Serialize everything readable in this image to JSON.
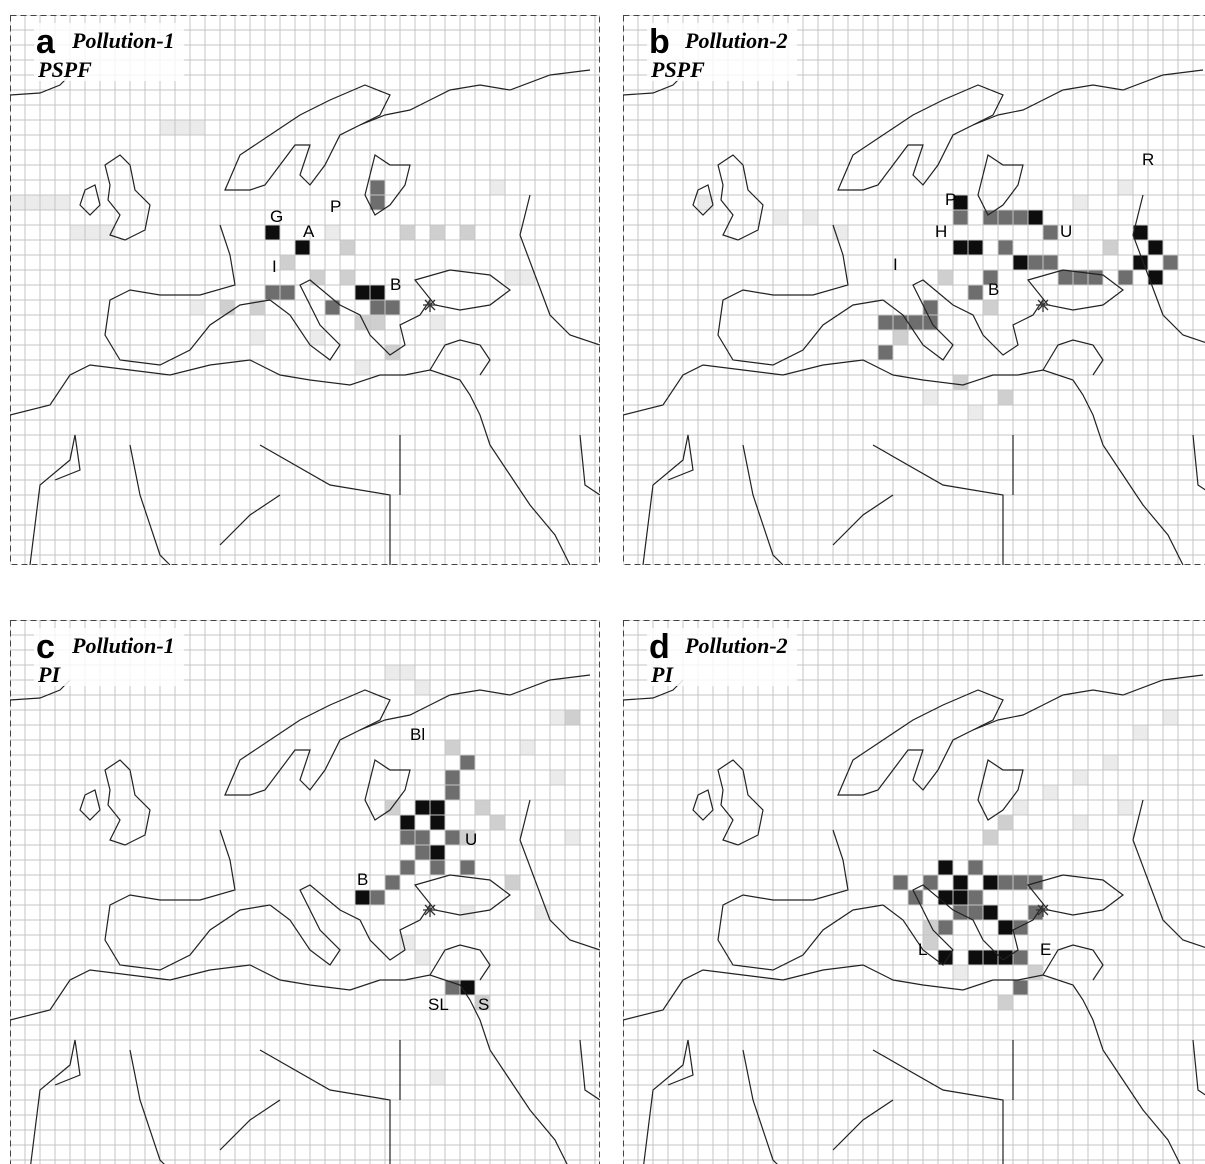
{
  "panels": [
    {
      "letter": "a",
      "title": "Pollution-1",
      "method": "PSPF",
      "labels": [
        "G",
        "P",
        "A",
        "I",
        "B"
      ],
      "cells": [
        [
          17,
          14,
          4
        ],
        [
          19,
          15,
          4
        ],
        [
          24,
          12,
          3
        ],
        [
          24,
          11,
          3
        ],
        [
          17,
          18,
          3
        ],
        [
          18,
          18,
          3
        ],
        [
          23,
          18,
          4
        ],
        [
          24,
          18,
          4
        ],
        [
          25,
          19,
          3
        ],
        [
          24,
          19,
          3
        ],
        [
          21,
          19,
          3
        ],
        [
          23,
          20,
          2
        ],
        [
          24,
          20,
          2
        ],
        [
          22,
          17,
          2
        ],
        [
          20,
          17,
          2
        ],
        [
          16,
          19,
          2
        ],
        [
          14,
          19,
          2
        ],
        [
          12,
          19,
          1
        ],
        [
          0,
          12,
          1
        ],
        [
          1,
          12,
          1
        ],
        [
          2,
          12,
          1
        ],
        [
          3,
          12,
          1
        ],
        [
          4,
          14,
          1
        ],
        [
          5,
          14,
          1
        ],
        [
          6,
          14,
          1
        ],
        [
          10,
          7,
          1
        ],
        [
          11,
          7,
          1
        ],
        [
          12,
          7,
          1
        ],
        [
          26,
          14,
          2
        ],
        [
          28,
          14,
          2
        ],
        [
          30,
          14,
          2
        ],
        [
          33,
          17,
          1
        ],
        [
          34,
          17,
          1
        ],
        [
          32,
          11,
          1
        ],
        [
          25,
          22,
          2
        ],
        [
          23,
          23,
          1
        ],
        [
          20,
          21,
          1
        ],
        [
          28,
          20,
          1
        ],
        [
          16,
          21,
          1
        ],
        [
          22,
          15,
          2
        ],
        [
          18,
          16,
          2
        ],
        [
          21,
          14,
          1
        ]
      ]
    },
    {
      "letter": "b",
      "title": "Pollution-2",
      "method": "PSPF",
      "labels": [
        "P",
        "H",
        "I",
        "B",
        "U",
        "R"
      ],
      "cells": [
        [
          22,
          15,
          4
        ],
        [
          23,
          15,
          4
        ],
        [
          22,
          12,
          4
        ],
        [
          22,
          13,
          3
        ],
        [
          24,
          13,
          3
        ],
        [
          25,
          13,
          3
        ],
        [
          26,
          13,
          3
        ],
        [
          27,
          13,
          4
        ],
        [
          28,
          14,
          3
        ],
        [
          25,
          15,
          3
        ],
        [
          26,
          16,
          4
        ],
        [
          27,
          16,
          3
        ],
        [
          28,
          16,
          3
        ],
        [
          29,
          17,
          3
        ],
        [
          30,
          17,
          3
        ],
        [
          31,
          17,
          3
        ],
        [
          24,
          17,
          3
        ],
        [
          23,
          18,
          3
        ],
        [
          21,
          17,
          2
        ],
        [
          20,
          19,
          3
        ],
        [
          19,
          20,
          3
        ],
        [
          20,
          20,
          3
        ],
        [
          18,
          20,
          3
        ],
        [
          17,
          20,
          3
        ],
        [
          18,
          21,
          2
        ],
        [
          17,
          22,
          3
        ],
        [
          34,
          14,
          4
        ],
        [
          35,
          15,
          4
        ],
        [
          34,
          16,
          4
        ],
        [
          35,
          17,
          4
        ],
        [
          33,
          17,
          3
        ],
        [
          36,
          16,
          3
        ],
        [
          32,
          15,
          2
        ],
        [
          24,
          19,
          2
        ],
        [
          22,
          24,
          2
        ],
        [
          25,
          25,
          2
        ],
        [
          23,
          26,
          1
        ],
        [
          20,
          25,
          1
        ],
        [
          30,
          12,
          1
        ],
        [
          33,
          11,
          1
        ],
        [
          5,
          12,
          1
        ],
        [
          10,
          13,
          1
        ],
        [
          12,
          13,
          1
        ],
        [
          14,
          14,
          1
        ]
      ]
    },
    {
      "letter": "c",
      "title": "Pollution-1",
      "method": "PI",
      "labels": [
        "Bl",
        "U",
        "B",
        "SL",
        "S"
      ],
      "cells": [
        [
          27,
          12,
          4
        ],
        [
          28,
          12,
          4
        ],
        [
          26,
          13,
          4
        ],
        [
          28,
          13,
          4
        ],
        [
          29,
          14,
          3
        ],
        [
          27,
          14,
          3
        ],
        [
          26,
          14,
          3
        ],
        [
          28,
          15,
          4
        ],
        [
          27,
          15,
          3
        ],
        [
          26,
          16,
          3
        ],
        [
          28,
          16,
          3
        ],
        [
          30,
          16,
          3
        ],
        [
          24,
          18,
          3
        ],
        [
          23,
          18,
          4
        ],
        [
          25,
          17,
          3
        ],
        [
          29,
          11,
          3
        ],
        [
          29,
          10,
          3
        ],
        [
          30,
          9,
          3
        ],
        [
          29,
          8,
          2
        ],
        [
          31,
          12,
          2
        ],
        [
          32,
          13,
          2
        ],
        [
          30,
          14,
          2
        ],
        [
          25,
          12,
          2
        ],
        [
          30,
          19,
          1
        ],
        [
          33,
          17,
          2
        ],
        [
          35,
          19,
          1
        ],
        [
          29,
          24,
          3
        ],
        [
          30,
          24,
          4
        ],
        [
          31,
          25,
          2
        ],
        [
          27,
          22,
          1
        ],
        [
          26,
          21,
          1
        ],
        [
          25,
          3,
          1
        ],
        [
          26,
          3,
          1
        ],
        [
          27,
          4,
          1
        ],
        [
          36,
          6,
          1
        ],
        [
          37,
          6,
          2
        ],
        [
          34,
          8,
          1
        ],
        [
          36,
          10,
          1
        ],
        [
          37,
          14,
          1
        ],
        [
          28,
          30,
          1
        ]
      ]
    },
    {
      "letter": "d",
      "title": "Pollution-2",
      "method": "PI",
      "labels": [
        "L",
        "E"
      ],
      "cells": [
        [
          21,
          16,
          4
        ],
        [
          22,
          17,
          4
        ],
        [
          23,
          16,
          3
        ],
        [
          21,
          18,
          4
        ],
        [
          22,
          18,
          4
        ],
        [
          23,
          18,
          3
        ],
        [
          24,
          17,
          4
        ],
        [
          25,
          17,
          3
        ],
        [
          26,
          17,
          3
        ],
        [
          27,
          17,
          3
        ],
        [
          20,
          17,
          3
        ],
        [
          19,
          18,
          3
        ],
        [
          22,
          19,
          3
        ],
        [
          23,
          19,
          3
        ],
        [
          24,
          19,
          4
        ],
        [
          25,
          20,
          4
        ],
        [
          26,
          20,
          3
        ],
        [
          27,
          19,
          3
        ],
        [
          21,
          20,
          3
        ],
        [
          20,
          20,
          2
        ],
        [
          21,
          22,
          4
        ],
        [
          23,
          22,
          4
        ],
        [
          24,
          22,
          4
        ],
        [
          25,
          22,
          4
        ],
        [
          26,
          22,
          3
        ],
        [
          22,
          23,
          1
        ],
        [
          27,
          23,
          2
        ],
        [
          26,
          24,
          3
        ],
        [
          25,
          25,
          2
        ],
        [
          18,
          17,
          3
        ],
        [
          24,
          14,
          2
        ],
        [
          25,
          13,
          2
        ],
        [
          26,
          12,
          1
        ],
        [
          28,
          11,
          1
        ],
        [
          30,
          10,
          1
        ],
        [
          32,
          9,
          1
        ],
        [
          34,
          7,
          1
        ],
        [
          36,
          6,
          1
        ],
        [
          30,
          13,
          1
        ],
        [
          33,
          12,
          1
        ],
        [
          20,
          21,
          2
        ]
      ]
    }
  ]
}
